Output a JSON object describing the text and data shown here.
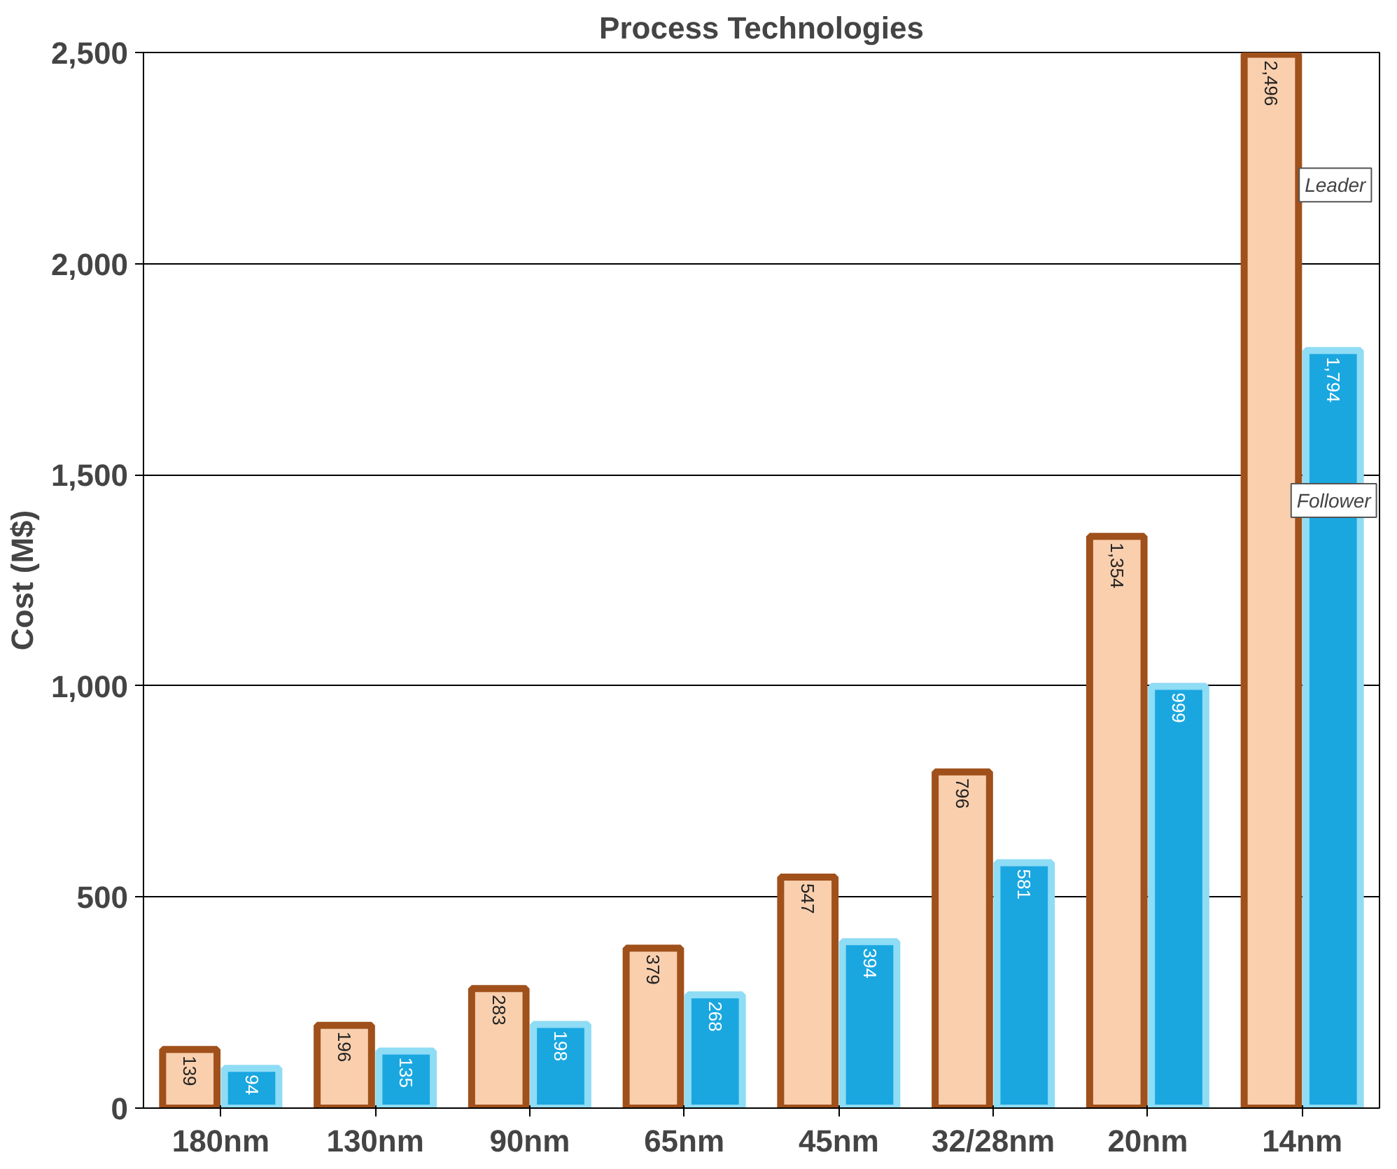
{
  "chart_data": {
    "type": "bar",
    "title": "Process Technologies",
    "ylabel": "Cost (M$)",
    "categories": [
      "180nm",
      "130nm",
      "90nm",
      "65nm",
      "45nm",
      "32/28nm",
      "20nm",
      "14nm"
    ],
    "series": [
      {
        "name": "Leader",
        "color": "#f9cfae",
        "values": [
          139,
          196,
          283,
          379,
          547,
          796,
          1354,
          2496
        ],
        "value_labels": [
          "139",
          "196",
          "283",
          "379",
          "547",
          "796",
          "1,354",
          "2,496"
        ]
      },
      {
        "name": "Follower",
        "color": "#1aa7e0",
        "values": [
          94,
          135,
          198,
          268,
          394,
          581,
          999,
          1794
        ],
        "value_labels": [
          "94",
          "135",
          "198",
          "268",
          "394",
          "581",
          "999",
          "1,794"
        ]
      }
    ],
    "ylim": [
      0,
      2500
    ],
    "yticks": [
      0,
      500,
      {
        "value": 1000,
        "label": "1,000"
      },
      {
        "value": 1500,
        "label": "1,500"
      },
      {
        "value": 2000,
        "label": "2,000"
      },
      {
        "value": 2500,
        "label": "2,500"
      }
    ],
    "grid": "y"
  }
}
